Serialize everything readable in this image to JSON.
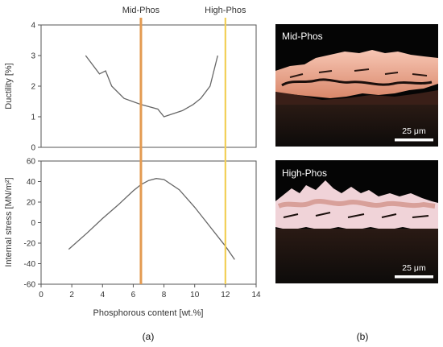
{
  "chart_data": [
    {
      "type": "line",
      "panel": "top",
      "ylabel": "Ductility [%]",
      "xlabel": "",
      "xlim": [
        0,
        14
      ],
      "ylim": [
        0,
        4
      ],
      "yticks": [
        0,
        1,
        2,
        3,
        4
      ],
      "series": [
        {
          "x": [
            2.9,
            3.8,
            4.2,
            4.6,
            5.4,
            6.5,
            7.6,
            8.0,
            9.2,
            9.9,
            10.4,
            11.0,
            11.5
          ],
          "y": [
            3.0,
            2.4,
            2.5,
            2.0,
            1.6,
            1.4,
            1.25,
            1.0,
            1.2,
            1.4,
            1.6,
            2.0,
            3.0
          ]
        }
      ],
      "color": "#666666"
    },
    {
      "type": "line",
      "panel": "bottom",
      "ylabel": "Internal stress [MN/m²]",
      "xlabel": "Phosphorous content [wt.%]",
      "xlim": [
        0,
        14
      ],
      "ylim": [
        -60,
        60
      ],
      "yticks": [
        -60,
        -40,
        -20,
        0,
        20,
        40,
        60
      ],
      "xticks": [
        0,
        2,
        4,
        6,
        8,
        10,
        12,
        14
      ],
      "series": [
        {
          "x": [
            1.8,
            3.0,
            4.0,
            5.0,
            6.0,
            6.5,
            7.0,
            7.5,
            8.0,
            9.0,
            10.0,
            11.0,
            12.0,
            12.6
          ],
          "y": [
            -26,
            -10,
            4,
            17,
            31,
            37,
            41,
            43,
            42,
            32,
            15,
            -4,
            -23,
            -36
          ]
        }
      ],
      "color": "#666666"
    }
  ],
  "markers": [
    {
      "label": "Mid-Phos",
      "x": 6.5,
      "color": "#e39a51"
    },
    {
      "label": "High-Phos",
      "x": 12.0,
      "color": "#f2cf57"
    }
  ],
  "panel_labels": {
    "a": "(a)",
    "b": "(b)"
  },
  "micrographs": [
    {
      "title": "Mid-Phos",
      "scale_bar": "25 μm"
    },
    {
      "title": "High-Phos",
      "scale_bar": "25 μm"
    }
  ]
}
